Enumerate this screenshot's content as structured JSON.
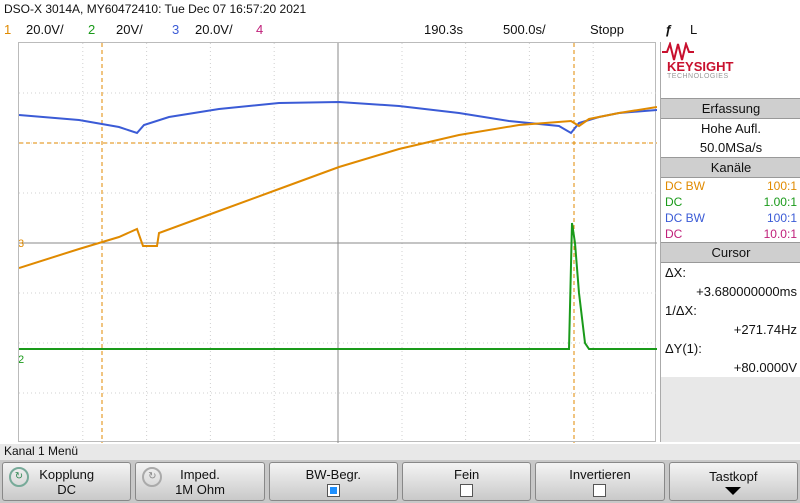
{
  "header": {
    "title": "DSO-X 3014A, MY60472410: Tue Dec 07 16:57:20 2021"
  },
  "status_bar": {
    "ch1_num": "1",
    "ch1_scale": "20.0V/",
    "ch2_num": "2",
    "ch2_scale": "20V/",
    "ch3_num": "3",
    "ch3_scale": "20.0V/",
    "ch4_num": "4",
    "time_pos": "190.3s",
    "time_scale": "500.0s/",
    "run_state": "Stopp",
    "trigger_mode": "L"
  },
  "colors": {
    "ch1": "#e08a00",
    "ch2": "#1a9a1a",
    "ch3": "#3b5bd6",
    "ch4": "#c0207a",
    "brand": "#c8102e"
  },
  "sidebar": {
    "brand": "KEYSIGHT",
    "brand_sub": "TECHNOLOGIES",
    "acq_header": "Erfassung",
    "acq_mode": "Hohe Aufl.",
    "acq_rate": "50.0MSa/s",
    "channels_header": "Kanäle",
    "channels": [
      {
        "coupling": "DC BW",
        "probe": "100:1"
      },
      {
        "coupling": "DC",
        "probe": "1.00:1"
      },
      {
        "coupling": "DC BW",
        "probe": "100:1"
      },
      {
        "coupling": "DC",
        "probe": "10.0:1"
      }
    ],
    "cursor_header": "Cursor",
    "dx_label": "ΔX:",
    "dx_value": "+3.680000000ms",
    "inv_dx_label": "1/ΔX:",
    "inv_dx_value": "+271.74Hz",
    "dy_label": "ΔY(1):",
    "dy_value": "+80.0000V"
  },
  "menu": {
    "title": "Kanal 1 Menü",
    "softkeys": [
      {
        "label": "Kopplung",
        "value": "DC"
      },
      {
        "label": "Imped.",
        "value": "1M Ohm"
      },
      {
        "label": "BW-Begr.",
        "value": ""
      },
      {
        "label": "Fein",
        "value": ""
      },
      {
        "label": "Invertieren",
        "value": ""
      },
      {
        "label": "Tastkopf",
        "value": ""
      }
    ]
  }
}
